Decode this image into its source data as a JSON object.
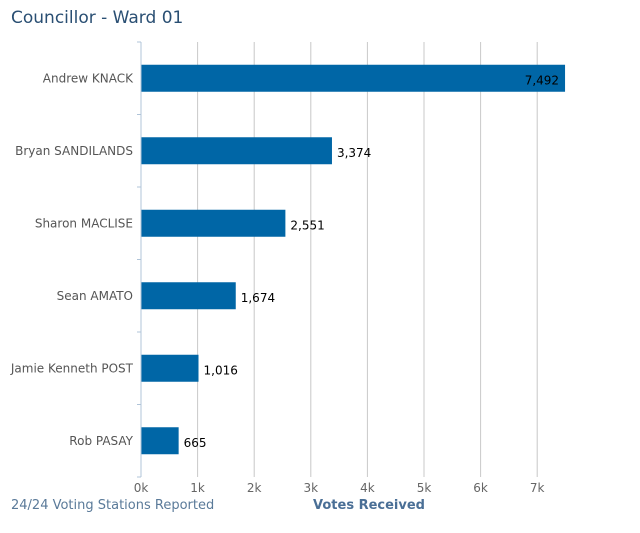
{
  "header": {
    "title": "Councillor - Ward 01"
  },
  "footer": {
    "stations_reported": "24/24 Voting Stations Reported"
  },
  "chart_data": {
    "type": "bar",
    "orientation": "horizontal",
    "categories": [
      "Andrew KNACK",
      "Bryan SANDILANDS",
      "Sharon MACLISE",
      "Sean AMATO",
      "Jamie Kenneth POST",
      "Rob PASAY"
    ],
    "values": [
      7492,
      3374,
      2551,
      1674,
      1016,
      665
    ],
    "value_labels": [
      "7,492",
      "3,374",
      "2,551",
      "1,674",
      "1,016",
      "665"
    ],
    "xlabel": "Votes Received",
    "xticks": [
      "0k",
      "1k",
      "2k",
      "3k",
      "4k",
      "5k",
      "6k",
      "7k"
    ],
    "xlim": [
      0,
      7500
    ],
    "grid": true,
    "bar_color": "#0066a6"
  }
}
